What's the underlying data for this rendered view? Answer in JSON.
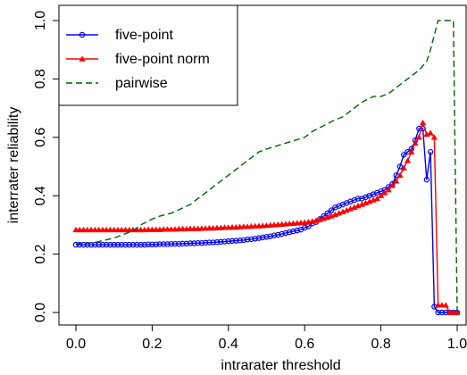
{
  "chart_data": {
    "type": "line",
    "title": "",
    "xlabel": "intrarater threshold",
    "ylabel": "interrater reliability",
    "xlim": [
      0.0,
      1.0
    ],
    "ylim": [
      0.0,
      1.0
    ],
    "x_ticks": [
      "0.0",
      "0.2",
      "0.4",
      "0.6",
      "0.8",
      "1.0"
    ],
    "y_ticks": [
      "0.0",
      "0.2",
      "0.4",
      "0.6",
      "0.8",
      "1.0"
    ],
    "grid": false,
    "legend_position": "top-left",
    "series": [
      {
        "name": "five-point",
        "color": "#0000ff",
        "marker": "open-circle",
        "line_style": "solid",
        "x": [
          0.0,
          0.01,
          0.02,
          0.03,
          0.04,
          0.05,
          0.06,
          0.07,
          0.08,
          0.09,
          0.1,
          0.11,
          0.12,
          0.13,
          0.14,
          0.15,
          0.16,
          0.17,
          0.18,
          0.19,
          0.2,
          0.21,
          0.22,
          0.23,
          0.24,
          0.25,
          0.26,
          0.27,
          0.28,
          0.29,
          0.3,
          0.31,
          0.32,
          0.33,
          0.34,
          0.35,
          0.36,
          0.37,
          0.38,
          0.39,
          0.4,
          0.41,
          0.42,
          0.43,
          0.44,
          0.45,
          0.46,
          0.47,
          0.48,
          0.49,
          0.5,
          0.51,
          0.52,
          0.53,
          0.54,
          0.55,
          0.56,
          0.57,
          0.58,
          0.59,
          0.6,
          0.61,
          0.62,
          0.63,
          0.64,
          0.65,
          0.66,
          0.67,
          0.68,
          0.69,
          0.7,
          0.71,
          0.72,
          0.73,
          0.74,
          0.75,
          0.76,
          0.77,
          0.78,
          0.79,
          0.8,
          0.81,
          0.82,
          0.83,
          0.84,
          0.85,
          0.86,
          0.87,
          0.88,
          0.89,
          0.9,
          0.91,
          0.92,
          0.93,
          0.94,
          0.95,
          0.96,
          0.97,
          0.98,
          0.99,
          1.0
        ],
        "y": [
          0.232,
          0.232,
          0.232,
          0.232,
          0.232,
          0.232,
          0.232,
          0.232,
          0.232,
          0.232,
          0.232,
          0.232,
          0.232,
          0.232,
          0.232,
          0.232,
          0.232,
          0.232,
          0.232,
          0.233,
          0.233,
          0.233,
          0.234,
          0.234,
          0.234,
          0.235,
          0.235,
          0.235,
          0.236,
          0.236,
          0.237,
          0.237,
          0.238,
          0.238,
          0.239,
          0.24,
          0.24,
          0.241,
          0.242,
          0.243,
          0.244,
          0.245,
          0.246,
          0.247,
          0.248,
          0.25,
          0.251,
          0.253,
          0.255,
          0.257,
          0.259,
          0.261,
          0.264,
          0.266,
          0.269,
          0.272,
          0.275,
          0.278,
          0.281,
          0.284,
          0.29,
          0.295,
          0.305,
          0.31,
          0.32,
          0.33,
          0.34,
          0.35,
          0.36,
          0.365,
          0.37,
          0.375,
          0.38,
          0.385,
          0.39,
          0.39,
          0.395,
          0.4,
          0.405,
          0.41,
          0.415,
          0.42,
          0.43,
          0.44,
          0.47,
          0.5,
          0.54,
          0.55,
          0.56,
          0.59,
          0.63,
          0.63,
          0.455,
          0.55,
          0.02,
          0.0,
          0.0,
          0.0,
          0.0,
          0.0,
          0.0
        ]
      },
      {
        "name": "five-point norm",
        "color": "#ff0000",
        "marker": "filled-triangle",
        "line_style": "solid",
        "x": [
          0.0,
          0.01,
          0.02,
          0.03,
          0.04,
          0.05,
          0.06,
          0.07,
          0.08,
          0.09,
          0.1,
          0.11,
          0.12,
          0.13,
          0.14,
          0.15,
          0.16,
          0.17,
          0.18,
          0.19,
          0.2,
          0.21,
          0.22,
          0.23,
          0.24,
          0.25,
          0.26,
          0.27,
          0.28,
          0.29,
          0.3,
          0.31,
          0.32,
          0.33,
          0.34,
          0.35,
          0.36,
          0.37,
          0.38,
          0.39,
          0.4,
          0.41,
          0.42,
          0.43,
          0.44,
          0.45,
          0.46,
          0.47,
          0.48,
          0.49,
          0.5,
          0.51,
          0.52,
          0.53,
          0.54,
          0.55,
          0.56,
          0.57,
          0.58,
          0.59,
          0.6,
          0.61,
          0.62,
          0.63,
          0.64,
          0.65,
          0.66,
          0.67,
          0.68,
          0.69,
          0.7,
          0.71,
          0.72,
          0.73,
          0.74,
          0.75,
          0.76,
          0.77,
          0.78,
          0.79,
          0.8,
          0.81,
          0.82,
          0.83,
          0.84,
          0.85,
          0.86,
          0.87,
          0.88,
          0.89,
          0.9,
          0.91,
          0.92,
          0.93,
          0.94,
          0.95,
          0.96,
          0.97,
          0.98,
          0.99,
          1.0
        ],
        "y": [
          0.283,
          0.283,
          0.283,
          0.283,
          0.283,
          0.283,
          0.283,
          0.283,
          0.283,
          0.283,
          0.283,
          0.283,
          0.283,
          0.283,
          0.283,
          0.283,
          0.283,
          0.283,
          0.283,
          0.284,
          0.284,
          0.284,
          0.284,
          0.285,
          0.285,
          0.285,
          0.285,
          0.286,
          0.286,
          0.286,
          0.287,
          0.287,
          0.287,
          0.288,
          0.288,
          0.289,
          0.289,
          0.29,
          0.29,
          0.291,
          0.291,
          0.292,
          0.292,
          0.293,
          0.294,
          0.294,
          0.295,
          0.296,
          0.296,
          0.297,
          0.298,
          0.299,
          0.3,
          0.301,
          0.302,
          0.303,
          0.304,
          0.305,
          0.306,
          0.307,
          0.308,
          0.31,
          0.312,
          0.315,
          0.318,
          0.322,
          0.326,
          0.33,
          0.335,
          0.34,
          0.345,
          0.35,
          0.355,
          0.36,
          0.365,
          0.37,
          0.375,
          0.38,
          0.385,
          0.39,
          0.4,
          0.41,
          0.42,
          0.435,
          0.45,
          0.47,
          0.495,
          0.52,
          0.55,
          0.58,
          0.6,
          0.65,
          0.61,
          0.615,
          0.6,
          0.025,
          0.025,
          0.025,
          0.0,
          0.0,
          0.0
        ]
      },
      {
        "name": "pairwise",
        "color": "#006400",
        "marker": "none",
        "line_style": "dashed",
        "x": [
          0.0,
          0.05,
          0.1,
          0.15,
          0.17,
          0.2,
          0.22,
          0.25,
          0.3,
          0.33,
          0.35,
          0.4,
          0.43,
          0.45,
          0.48,
          0.5,
          0.55,
          0.6,
          0.62,
          0.65,
          0.68,
          0.7,
          0.73,
          0.75,
          0.78,
          0.8,
          0.82,
          0.85,
          0.87,
          0.9,
          0.92,
          0.93,
          0.95,
          0.97,
          0.98,
          0.99,
          1.0
        ],
        "y": [
          0.235,
          0.24,
          0.255,
          0.28,
          0.3,
          0.32,
          0.33,
          0.34,
          0.37,
          0.4,
          0.42,
          0.47,
          0.5,
          0.52,
          0.55,
          0.56,
          0.58,
          0.6,
          0.62,
          0.64,
          0.66,
          0.67,
          0.7,
          0.72,
          0.74,
          0.74,
          0.75,
          0.78,
          0.8,
          0.83,
          0.86,
          0.9,
          1.0,
          1.0,
          1.0,
          1.0,
          0.0
        ]
      }
    ]
  }
}
